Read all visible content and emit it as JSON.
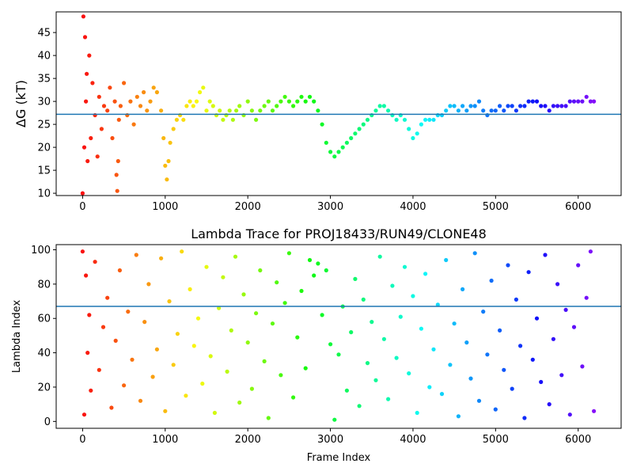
{
  "chart_data": [
    {
      "type": "scatter",
      "title": "",
      "xlabel": "",
      "ylabel": "ΔG (kT)",
      "xlim": [
        -320,
        6520
      ],
      "ylim": [
        9.5,
        49.5
      ],
      "xticks": [
        0,
        1000,
        2000,
        3000,
        4000,
        5000,
        6000
      ],
      "yticks": [
        10,
        15,
        20,
        25,
        30,
        35,
        40,
        45
      ],
      "hline": 27.2,
      "hline_color": "#1f77b4",
      "colormap": "rainbow (reversed: red at frame 0 to violet at last frame)",
      "grid": false,
      "legend": "none",
      "series": [
        {
          "x": [
            0,
            10,
            20,
            30,
            40,
            50,
            60,
            80,
            100,
            120,
            150,
            180,
            200,
            230,
            260,
            300,
            330,
            360,
            390,
            410,
            420,
            430,
            440,
            460,
            500,
            540,
            580,
            620,
            660,
            700,
            740,
            780,
            820,
            860,
            900,
            950,
            980,
            1000,
            1020,
            1040,
            1060,
            1100,
            1140,
            1180,
            1220,
            1260,
            1300,
            1340,
            1380,
            1420,
            1460,
            1500,
            1540,
            1580,
            1620,
            1660,
            1700,
            1740,
            1780,
            1820,
            1860,
            1900,
            1950,
            2000,
            2050,
            2100,
            2150,
            2200,
            2250,
            2300,
            2350,
            2400,
            2450,
            2500,
            2550,
            2600,
            2650,
            2700,
            2750,
            2800,
            2850,
            2900,
            2950,
            3000,
            3050,
            3100,
            3150,
            3200,
            3250,
            3300,
            3350,
            3400,
            3450,
            3500,
            3550,
            3600,
            3650,
            3700,
            3750,
            3800,
            3850,
            3900,
            3950,
            4000,
            4050,
            4100,
            4150,
            4200,
            4250,
            4300,
            4350,
            4400,
            4450,
            4500,
            4550,
            4600,
            4650,
            4700,
            4750,
            4800,
            4850,
            4900,
            4950,
            5000,
            5050,
            5100,
            5150,
            5200,
            5250,
            5300,
            5350,
            5400,
            5450,
            5500,
            5550,
            5600,
            5650,
            5700,
            5750,
            5800,
            5850,
            5900,
            5950,
            6000,
            6050,
            6100,
            6150,
            6190
          ],
          "y": [
            10,
            48.5,
            20,
            44,
            30,
            36,
            17,
            40,
            22,
            34,
            27,
            18,
            31,
            24,
            29,
            28,
            33,
            22,
            30,
            14,
            10.5,
            17,
            26,
            29,
            34,
            27,
            30,
            25,
            31,
            29,
            32,
            28,
            30,
            33,
            32,
            28,
            22,
            16,
            13,
            17,
            21,
            24,
            26,
            27,
            26,
            29,
            30,
            29,
            30,
            32,
            33,
            28,
            30,
            29,
            27,
            28,
            26,
            27,
            28,
            26,
            28,
            29,
            27,
            30,
            28,
            26,
            28,
            29,
            30,
            28,
            29,
            30,
            31,
            30,
            29,
            30,
            31,
            30,
            31,
            30,
            28,
            25,
            21,
            19,
            18,
            19,
            20,
            21,
            22,
            23,
            24,
            25,
            26,
            27,
            28,
            29,
            29,
            28,
            27,
            26,
            27,
            26,
            24,
            22,
            23,
            25,
            26,
            26,
            26,
            27,
            27,
            28,
            29,
            29,
            28,
            29,
            28,
            29,
            29,
            30,
            28,
            27,
            28,
            28,
            29,
            28,
            29,
            29,
            28,
            29,
            29,
            30,
            30,
            30,
            29,
            29,
            28,
            29,
            29,
            29,
            29,
            30,
            30,
            30,
            30,
            31,
            30,
            30
          ]
        }
      ]
    },
    {
      "type": "scatter",
      "title": "Lambda Trace for PROJ18433/RUN49/CLONE48",
      "xlabel": "Frame Index",
      "ylabel": "Lambda Index",
      "xlim": [
        -320,
        6520
      ],
      "ylim": [
        -4,
        103
      ],
      "xticks": [
        0,
        1000,
        2000,
        3000,
        4000,
        5000,
        6000
      ],
      "yticks": [
        0,
        20,
        40,
        60,
        80,
        100
      ],
      "hline": 67,
      "hline_color": "#1f77b4",
      "colormap": "rainbow (reversed: red at frame 0 to violet at last frame)",
      "grid": false,
      "legend": "none",
      "series": [
        {
          "x": [
            0,
            20,
            40,
            60,
            80,
            100,
            150,
            200,
            250,
            300,
            350,
            400,
            450,
            500,
            550,
            600,
            650,
            700,
            750,
            800,
            850,
            900,
            950,
            1000,
            1050,
            1100,
            1150,
            1200,
            1250,
            1300,
            1350,
            1400,
            1450,
            1500,
            1550,
            1600,
            1650,
            1700,
            1750,
            1800,
            1850,
            1900,
            1950,
            2000,
            2050,
            2100,
            2150,
            2200,
            2250,
            2300,
            2350,
            2400,
            2450,
            2500,
            2550,
            2600,
            2650,
            2700,
            2750,
            2800,
            2850,
            2900,
            2950,
            3000,
            3050,
            3100,
            3150,
            3200,
            3250,
            3300,
            3350,
            3400,
            3450,
            3500,
            3550,
            3600,
            3650,
            3700,
            3750,
            3800,
            3850,
            3900,
            3950,
            4000,
            4050,
            4100,
            4150,
            4200,
            4250,
            4300,
            4350,
            4400,
            4450,
            4500,
            4550,
            4600,
            4650,
            4700,
            4750,
            4800,
            4850,
            4900,
            4950,
            5000,
            5050,
            5100,
            5150,
            5200,
            5250,
            5300,
            5350,
            5400,
            5450,
            5500,
            5550,
            5600,
            5650,
            5700,
            5750,
            5800,
            5850,
            5900,
            5950,
            6000,
            6050,
            6100,
            6150,
            6190
          ],
          "y": [
            99,
            4,
            85,
            40,
            62,
            18,
            93,
            30,
            55,
            72,
            8,
            47,
            88,
            21,
            64,
            36,
            97,
            12,
            58,
            80,
            26,
            42,
            95,
            6,
            70,
            33,
            51,
            99,
            15,
            77,
            44,
            60,
            22,
            90,
            38,
            5,
            66,
            84,
            29,
            53,
            96,
            11,
            74,
            46,
            19,
            63,
            88,
            35,
            2,
            57,
            81,
            27,
            69,
            98,
            14,
            49,
            76,
            31,
            94,
            85,
            92,
            62,
            88,
            45,
            1,
            39,
            67,
            18,
            52,
            83,
            9,
            71,
            34,
            58,
            24,
            96,
            48,
            13,
            79,
            37,
            61,
            90,
            28,
            73,
            5,
            54,
            86,
            20,
            42,
            68,
            16,
            94,
            33,
            57,
            3,
            77,
            46,
            25,
            98,
            12,
            64,
            39,
            82,
            7,
            53,
            30,
            91,
            19,
            71,
            44,
            2,
            87,
            36,
            60,
            23,
            97,
            10,
            48,
            80,
            27,
            65,
            4,
            55,
            91,
            32,
            72,
            99,
            6
          ]
        }
      ]
    }
  ]
}
